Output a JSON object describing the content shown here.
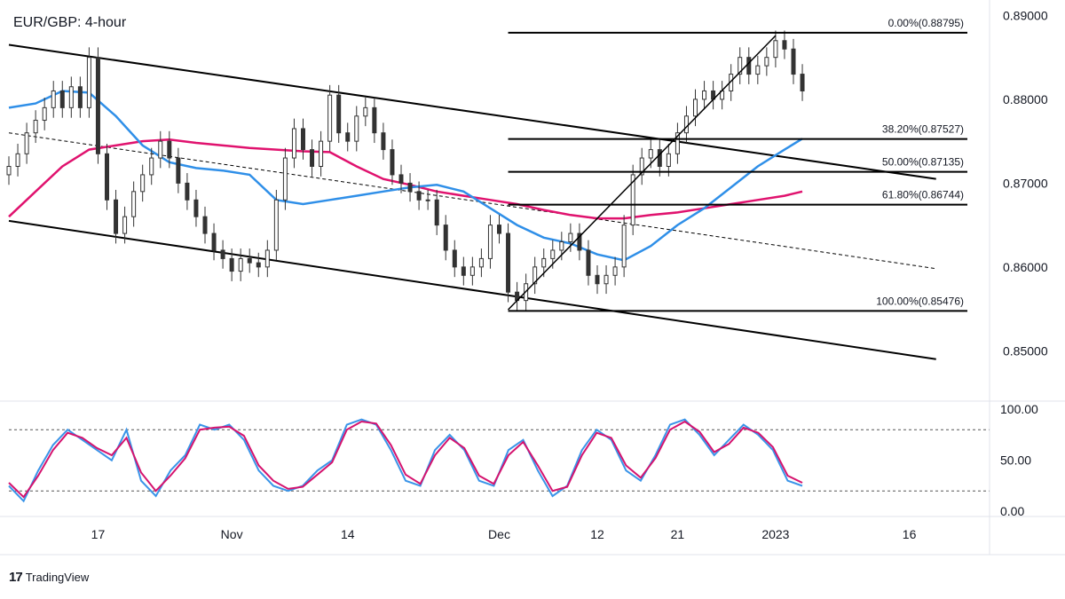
{
  "chart_data": {
    "type": "candlestick",
    "title": "EUR/GBP: 4-hour",
    "price_axis": {
      "range": [
        0.844,
        0.891
      ],
      "ticks": [
        {
          "value": 0.89,
          "label": "0.89000"
        },
        {
          "value": 0.88,
          "label": "0.88000"
        },
        {
          "value": 0.87,
          "label": "0.87000"
        },
        {
          "value": 0.86,
          "label": "0.86000"
        },
        {
          "value": 0.85,
          "label": "0.85000"
        }
      ]
    },
    "time_axis": {
      "range": [
        "2022-10-07",
        "2023-01-25"
      ],
      "ticks": [
        {
          "date": "2022-10-17",
          "label": "17"
        },
        {
          "date": "2022-11-01",
          "label": "Nov"
        },
        {
          "date": "2022-11-14",
          "label": "14"
        },
        {
          "date": "2022-12-01",
          "label": "Dec"
        },
        {
          "date": "2022-12-12",
          "label": "12"
        },
        {
          "date": "2022-12-21",
          "label": "21"
        },
        {
          "date": "2023-01-01",
          "label": "2023"
        },
        {
          "date": "2023-01-16",
          "label": "16"
        }
      ]
    },
    "fibonacci": {
      "start_date": "2022-12-02",
      "end_date": "2023-01-02",
      "levels": [
        {
          "label": "0.00%(0.88795)",
          "value": 0.88795
        },
        {
          "label": "38.20%(0.87527)",
          "value": 0.87527
        },
        {
          "label": "50.00%(0.87135)",
          "value": 0.87135
        },
        {
          "label": "61.80%(0.86744)",
          "value": 0.86744
        },
        {
          "label": "100.00%(0.85476)",
          "value": 0.85476
        }
      ]
    },
    "channel": {
      "upper": [
        [
          "2022-10-07",
          0.8865
        ],
        [
          "2023-01-19",
          0.8705
        ]
      ],
      "lower": [
        [
          "2022-10-07",
          0.8655
        ],
        [
          "2023-01-19",
          0.849
        ]
      ],
      "mid": [
        [
          "2022-10-07",
          0.876
        ],
        [
          "2023-01-19",
          0.8598
        ]
      ]
    },
    "fib_trend": [
      [
        "2022-12-02",
        0.8549
      ],
      [
        "2023-01-01",
        0.8876
      ]
    ],
    "closes": [
      [
        "2022-10-07",
        0.872
      ],
      [
        "2022-10-08",
        0.8735
      ],
      [
        "2022-10-09",
        0.876
      ],
      [
        "2022-10-10",
        0.8775
      ],
      [
        "2022-10-11",
        0.879
      ],
      [
        "2022-10-12",
        0.881
      ],
      [
        "2022-10-13",
        0.879
      ],
      [
        "2022-10-14",
        0.8815
      ],
      [
        "2022-10-15",
        0.879
      ],
      [
        "2022-10-16",
        0.885
      ],
      [
        "2022-10-17",
        0.8735
      ],
      [
        "2022-10-18",
        0.868
      ],
      [
        "2022-10-19",
        0.864
      ],
      [
        "2022-10-20",
        0.866
      ],
      [
        "2022-10-21",
        0.869
      ],
      [
        "2022-10-22",
        0.871
      ],
      [
        "2022-10-23",
        0.873
      ],
      [
        "2022-10-24",
        0.875
      ],
      [
        "2022-10-25",
        0.873
      ],
      [
        "2022-10-26",
        0.87
      ],
      [
        "2022-10-27",
        0.868
      ],
      [
        "2022-10-28",
        0.866
      ],
      [
        "2022-10-29",
        0.864
      ],
      [
        "2022-10-30",
        0.862
      ],
      [
        "2022-10-31",
        0.861
      ],
      [
        "2022-11-01",
        0.8595
      ],
      [
        "2022-11-02",
        0.861
      ],
      [
        "2022-11-03",
        0.8605
      ],
      [
        "2022-11-04",
        0.86
      ],
      [
        "2022-11-05",
        0.862
      ],
      [
        "2022-11-06",
        0.868
      ],
      [
        "2022-11-07",
        0.873
      ],
      [
        "2022-11-08",
        0.8765
      ],
      [
        "2022-11-09",
        0.874
      ],
      [
        "2022-11-10",
        0.872
      ],
      [
        "2022-11-11",
        0.875
      ],
      [
        "2022-11-12",
        0.8805
      ],
      [
        "2022-11-13",
        0.876
      ],
      [
        "2022-11-14",
        0.875
      ],
      [
        "2022-11-15",
        0.878
      ],
      [
        "2022-11-16",
        0.879
      ],
      [
        "2022-11-17",
        0.876
      ],
      [
        "2022-11-18",
        0.874
      ],
      [
        "2022-11-19",
        0.871
      ],
      [
        "2022-11-20",
        0.87
      ],
      [
        "2022-11-21",
        0.869
      ],
      [
        "2022-11-22",
        0.868
      ],
      [
        "2022-11-23",
        0.868
      ],
      [
        "2022-11-24",
        0.865
      ],
      [
        "2022-11-25",
        0.862
      ],
      [
        "2022-11-26",
        0.86
      ],
      [
        "2022-11-27",
        0.859
      ],
      [
        "2022-11-28",
        0.86
      ],
      [
        "2022-11-29",
        0.861
      ],
      [
        "2022-11-30",
        0.865
      ],
      [
        "2022-12-01",
        0.864
      ],
      [
        "2022-12-02",
        0.857
      ],
      [
        "2022-12-03",
        0.856
      ],
      [
        "2022-12-04",
        0.858
      ],
      [
        "2022-12-05",
        0.86
      ],
      [
        "2022-12-06",
        0.861
      ],
      [
        "2022-12-07",
        0.862
      ],
      [
        "2022-12-08",
        0.863
      ],
      [
        "2022-12-09",
        0.864
      ],
      [
        "2022-12-10",
        0.862
      ],
      [
        "2022-12-11",
        0.859
      ],
      [
        "2022-12-12",
        0.858
      ],
      [
        "2022-12-13",
        0.859
      ],
      [
        "2022-12-14",
        0.86
      ],
      [
        "2022-12-15",
        0.865
      ],
      [
        "2022-12-16",
        0.871
      ],
      [
        "2022-12-17",
        0.873
      ],
      [
        "2022-12-18",
        0.874
      ],
      [
        "2022-12-19",
        0.872
      ],
      [
        "2022-12-20",
        0.8735
      ],
      [
        "2022-12-21",
        0.876
      ],
      [
        "2022-12-22",
        0.878
      ],
      [
        "2022-12-23",
        0.88
      ],
      [
        "2022-12-24",
        0.881
      ],
      [
        "2022-12-25",
        0.88
      ],
      [
        "2022-12-26",
        0.881
      ],
      [
        "2022-12-27",
        0.883
      ],
      [
        "2022-12-28",
        0.885
      ],
      [
        "2022-12-29",
        0.883
      ],
      [
        "2022-12-30",
        0.884
      ],
      [
        "2022-12-31",
        0.885
      ],
      [
        "2023-01-01",
        0.887
      ],
      [
        "2023-01-02",
        0.886
      ],
      [
        "2023-01-03",
        0.883
      ],
      [
        "2023-01-04",
        0.881
      ]
    ],
    "sma_blue": [
      [
        "2022-10-07",
        0.879
      ],
      [
        "2022-10-10",
        0.8795
      ],
      [
        "2022-10-13",
        0.881
      ],
      [
        "2022-10-16",
        0.8808
      ],
      [
        "2022-10-19",
        0.878
      ],
      [
        "2022-10-22",
        0.8745
      ],
      [
        "2022-10-25",
        0.8725
      ],
      [
        "2022-10-28",
        0.8718
      ],
      [
        "2022-10-31",
        0.8715
      ],
      [
        "2022-11-03",
        0.871
      ],
      [
        "2022-11-06",
        0.868
      ],
      [
        "2022-11-09",
        0.8675
      ],
      [
        "2022-11-12",
        0.868
      ],
      [
        "2022-11-15",
        0.8685
      ],
      [
        "2022-11-18",
        0.869
      ],
      [
        "2022-11-21",
        0.8695
      ],
      [
        "2022-11-24",
        0.8698
      ],
      [
        "2022-11-27",
        0.869
      ],
      [
        "2022-11-30",
        0.867
      ],
      [
        "2022-12-03",
        0.865
      ],
      [
        "2022-12-06",
        0.8635
      ],
      [
        "2022-12-09",
        0.8628
      ],
      [
        "2022-12-12",
        0.8615
      ],
      [
        "2022-12-15",
        0.8608
      ],
      [
        "2022-12-18",
        0.8625
      ],
      [
        "2022-12-21",
        0.865
      ],
      [
        "2022-12-24",
        0.867
      ],
      [
        "2022-12-27",
        0.8695
      ],
      [
        "2022-12-30",
        0.872
      ],
      [
        "2023-01-02",
        0.874
      ],
      [
        "2023-01-04",
        0.8753
      ]
    ],
    "sma_magenta": [
      [
        "2022-10-07",
        0.866
      ],
      [
        "2022-10-10",
        0.869
      ],
      [
        "2022-10-13",
        0.872
      ],
      [
        "2022-10-16",
        0.874
      ],
      [
        "2022-10-19",
        0.8745
      ],
      [
        "2022-10-22",
        0.875
      ],
      [
        "2022-10-25",
        0.8752
      ],
      [
        "2022-10-28",
        0.8748
      ],
      [
        "2022-10-31",
        0.8745
      ],
      [
        "2022-11-03",
        0.8742
      ],
      [
        "2022-11-06",
        0.874
      ],
      [
        "2022-11-09",
        0.8738
      ],
      [
        "2022-11-12",
        0.8737
      ],
      [
        "2022-11-15",
        0.872
      ],
      [
        "2022-11-18",
        0.8705
      ],
      [
        "2022-11-21",
        0.8698
      ],
      [
        "2022-11-24",
        0.869
      ],
      [
        "2022-11-27",
        0.8685
      ],
      [
        "2022-11-30",
        0.868
      ],
      [
        "2022-12-03",
        0.8675
      ],
      [
        "2022-12-06",
        0.8668
      ],
      [
        "2022-12-09",
        0.8662
      ],
      [
        "2022-12-12",
        0.8658
      ],
      [
        "2022-12-15",
        0.8658
      ],
      [
        "2022-12-18",
        0.8662
      ],
      [
        "2022-12-21",
        0.8665
      ],
      [
        "2022-12-24",
        0.867
      ],
      [
        "2022-12-27",
        0.8675
      ],
      [
        "2022-12-30",
        0.868
      ],
      [
        "2023-01-02",
        0.8685
      ],
      [
        "2023-01-04",
        0.869
      ]
    ],
    "stochastic": {
      "range": [
        -5,
        108
      ],
      "ticks": [
        {
          "value": 100,
          "label": "100.00"
        },
        {
          "value": 50,
          "label": "50.00"
        },
        {
          "value": 0,
          "label": "0.00"
        }
      ],
      "bands": [
        80,
        20
      ],
      "k": [
        [
          0,
          25
        ],
        [
          2,
          10
        ],
        [
          4,
          40
        ],
        [
          6,
          65
        ],
        [
          8,
          80
        ],
        [
          10,
          70
        ],
        [
          12,
          60
        ],
        [
          14,
          50
        ],
        [
          16,
          80
        ],
        [
          18,
          30
        ],
        [
          20,
          15
        ],
        [
          22,
          40
        ],
        [
          24,
          55
        ],
        [
          26,
          85
        ],
        [
          28,
          80
        ],
        [
          30,
          85
        ],
        [
          32,
          70
        ],
        [
          34,
          40
        ],
        [
          36,
          25
        ],
        [
          38,
          20
        ],
        [
          40,
          25
        ],
        [
          42,
          40
        ],
        [
          44,
          50
        ],
        [
          46,
          85
        ],
        [
          48,
          90
        ],
        [
          50,
          85
        ],
        [
          52,
          60
        ],
        [
          54,
          30
        ],
        [
          56,
          25
        ],
        [
          58,
          60
        ],
        [
          60,
          75
        ],
        [
          62,
          60
        ],
        [
          64,
          30
        ],
        [
          66,
          25
        ],
        [
          68,
          60
        ],
        [
          70,
          70
        ],
        [
          72,
          40
        ],
        [
          74,
          15
        ],
        [
          76,
          25
        ],
        [
          78,
          60
        ],
        [
          80,
          80
        ],
        [
          82,
          70
        ],
        [
          84,
          40
        ],
        [
          86,
          30
        ],
        [
          88,
          55
        ],
        [
          90,
          85
        ],
        [
          92,
          90
        ],
        [
          94,
          75
        ],
        [
          96,
          55
        ],
        [
          98,
          70
        ],
        [
          100,
          85
        ],
        [
          102,
          75
        ],
        [
          104,
          60
        ],
        [
          106,
          30
        ],
        [
          108,
          25
        ]
      ],
      "d": [
        [
          0,
          28
        ],
        [
          2,
          14
        ],
        [
          4,
          35
        ],
        [
          6,
          60
        ],
        [
          8,
          77
        ],
        [
          10,
          72
        ],
        [
          12,
          62
        ],
        [
          14,
          55
        ],
        [
          16,
          72
        ],
        [
          18,
          38
        ],
        [
          20,
          20
        ],
        [
          22,
          35
        ],
        [
          24,
          52
        ],
        [
          26,
          80
        ],
        [
          28,
          82
        ],
        [
          30,
          83
        ],
        [
          32,
          74
        ],
        [
          34,
          45
        ],
        [
          36,
          30
        ],
        [
          38,
          22
        ],
        [
          40,
          24
        ],
        [
          42,
          36
        ],
        [
          44,
          48
        ],
        [
          46,
          80
        ],
        [
          48,
          88
        ],
        [
          50,
          86
        ],
        [
          52,
          65
        ],
        [
          54,
          36
        ],
        [
          56,
          27
        ],
        [
          58,
          55
        ],
        [
          60,
          72
        ],
        [
          62,
          62
        ],
        [
          64,
          35
        ],
        [
          66,
          27
        ],
        [
          68,
          55
        ],
        [
          70,
          68
        ],
        [
          72,
          45
        ],
        [
          74,
          20
        ],
        [
          76,
          24
        ],
        [
          78,
          55
        ],
        [
          80,
          77
        ],
        [
          82,
          72
        ],
        [
          84,
          45
        ],
        [
          86,
          33
        ],
        [
          88,
          52
        ],
        [
          90,
          80
        ],
        [
          92,
          88
        ],
        [
          94,
          78
        ],
        [
          96,
          58
        ],
        [
          98,
          66
        ],
        [
          100,
          82
        ],
        [
          102,
          77
        ],
        [
          104,
          63
        ],
        [
          106,
          35
        ],
        [
          108,
          28
        ]
      ]
    },
    "colors": {
      "bull": "#26a69a",
      "bear": "#ef5350",
      "sma_blue": "#2f8fe8",
      "sma_magenta": "#e0126e",
      "stoch_k": "#3a94e8",
      "stoch_d": "#d5136e",
      "candle": "#333333",
      "line": "#000000",
      "grid_border": "#e0e3eb"
    }
  },
  "branding": {
    "logo": "17",
    "name": "TradingView"
  }
}
